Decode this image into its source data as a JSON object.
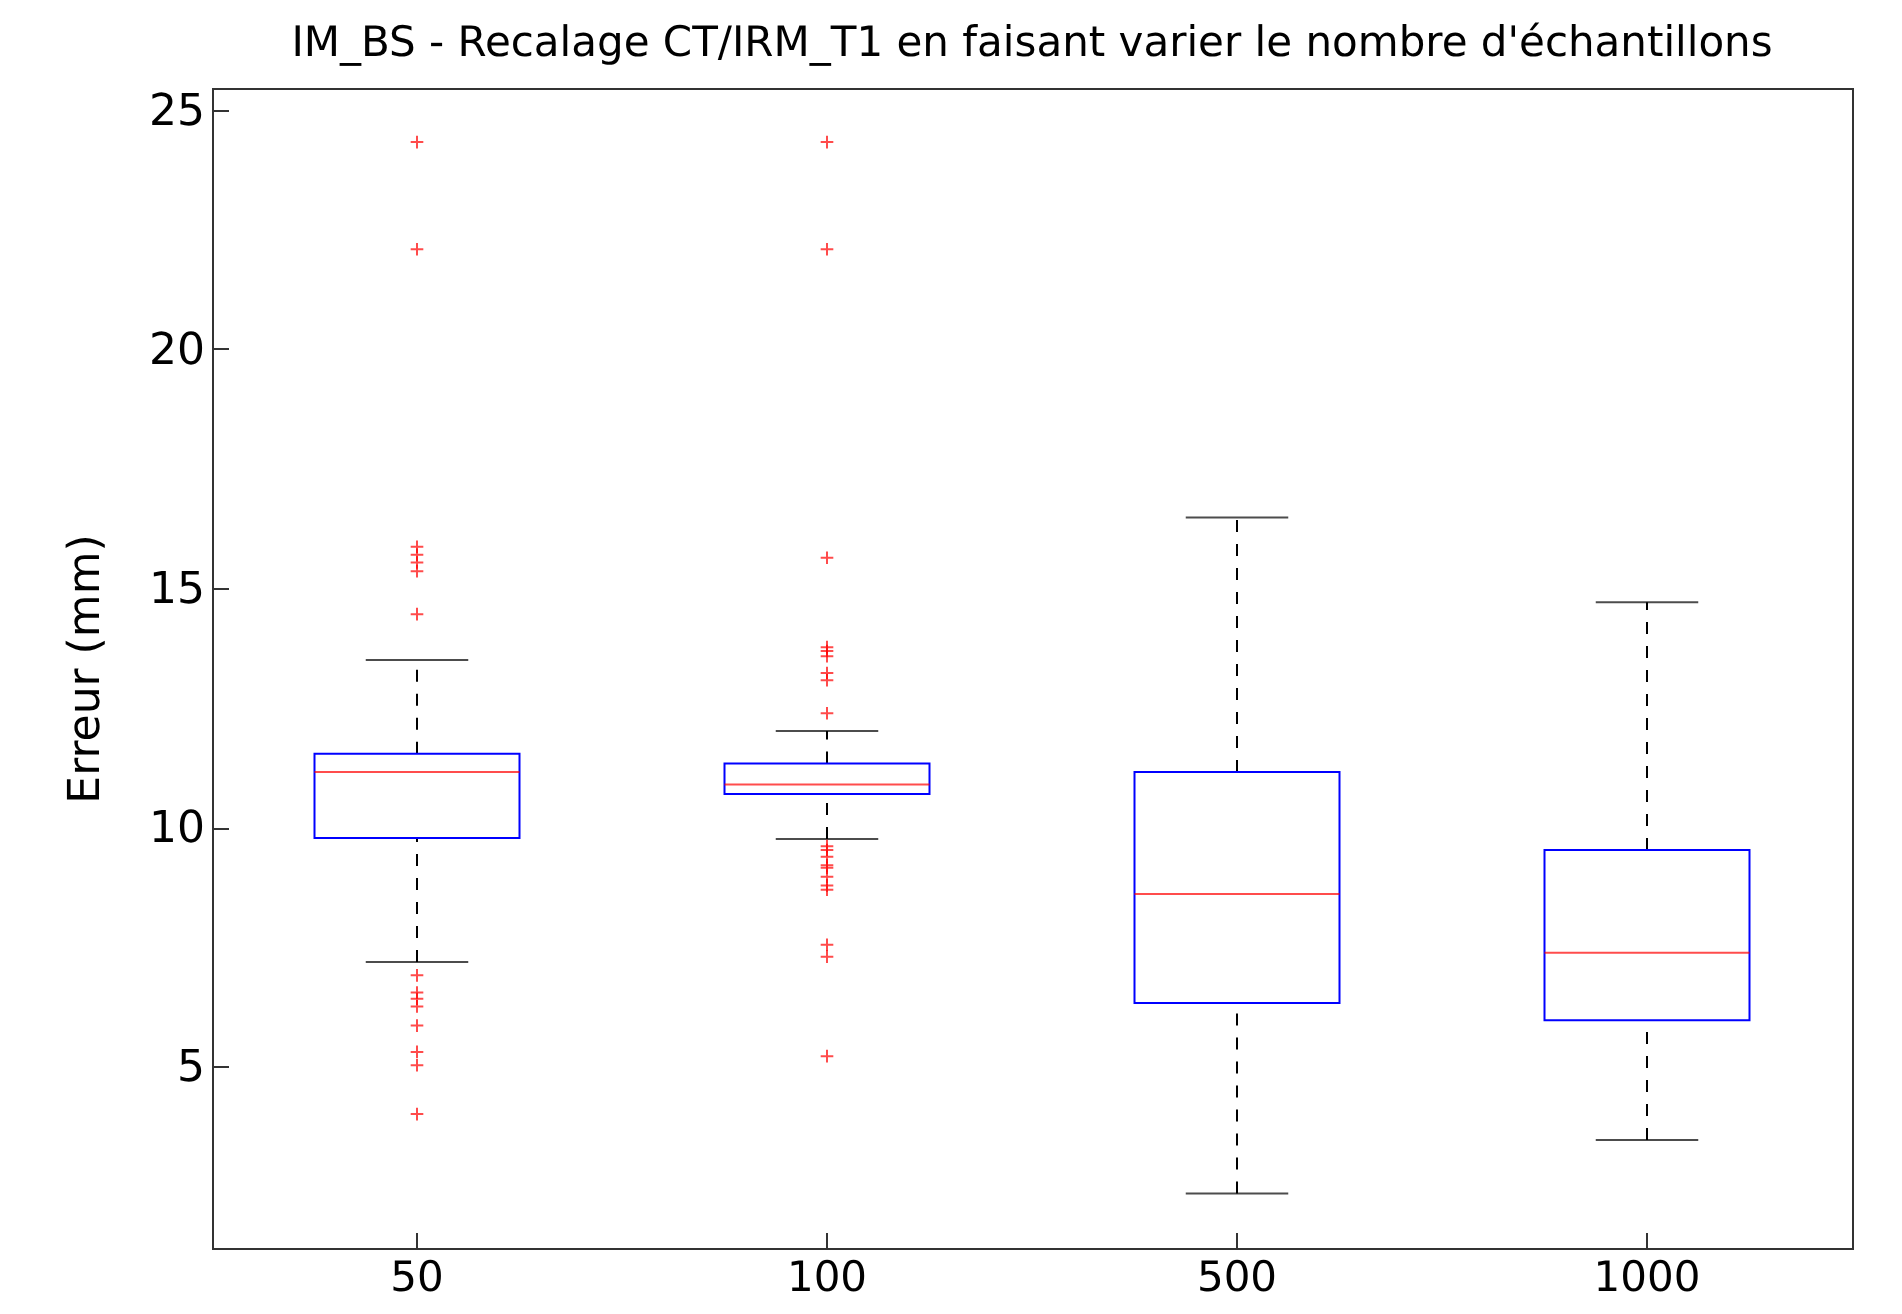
{
  "chart_data": {
    "type": "box",
    "title": "IM_BS - Recalage CT/IRM_T1 en faisant varier le nombre d'échantillons",
    "ylabel": "Erreur (mm)",
    "categories": [
      "50",
      "100",
      "500",
      "1000"
    ],
    "boxes": [
      {
        "low": 7.18,
        "q1": 9.77,
        "median": 11.15,
        "q3": 11.53,
        "high": 13.49,
        "outliers": [
          24.32,
          22.08,
          15.86,
          15.69,
          15.53,
          15.35,
          14.45,
          6.9,
          6.54,
          6.41,
          6.25,
          5.85,
          5.3,
          5.02,
          4.0
        ]
      },
      {
        "low": 9.75,
        "q1": 10.69,
        "median": 10.89,
        "q3": 11.33,
        "high": 12.01,
        "outliers": [
          24.32,
          22.08,
          15.63,
          13.76,
          13.68,
          13.57,
          13.22,
          13.07,
          12.38,
          9.6,
          9.52,
          9.38,
          9.2,
          9.15,
          8.96,
          8.78,
          8.69,
          7.54,
          7.29,
          5.21
        ]
      },
      {
        "low": 2.34,
        "q1": 6.32,
        "median": 8.6,
        "q3": 11.15,
        "high": 16.47
      },
      {
        "low": 3.46,
        "q1": 5.96,
        "median": 7.37,
        "q3": 9.52,
        "high": 14.7
      }
    ],
    "ylim": [
      1.2,
      25.45
    ],
    "yticks": [
      5,
      10,
      15,
      20,
      25
    ],
    "grid": false
  }
}
